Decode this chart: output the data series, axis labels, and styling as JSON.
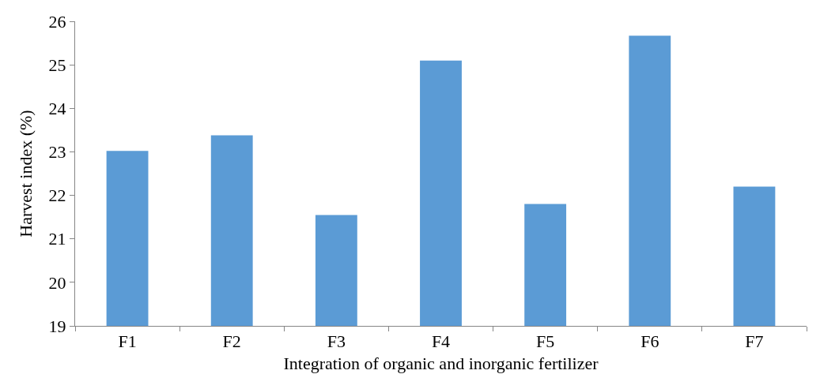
{
  "chart_data": {
    "type": "bar",
    "xlabel": "Integration of organic and inorganic fertilizer",
    "ylabel": "Harvest index (%)",
    "categories": [
      "F1",
      "F2",
      "F3",
      "F4",
      "F5",
      "F6",
      "F7"
    ],
    "values": [
      23.02,
      23.38,
      21.55,
      25.1,
      21.8,
      25.67,
      22.2
    ],
    "color": "#5b9bd5",
    "ylim": [
      19,
      26
    ],
    "yticks": [
      19,
      20,
      21,
      22,
      23,
      24,
      25,
      26
    ]
  }
}
